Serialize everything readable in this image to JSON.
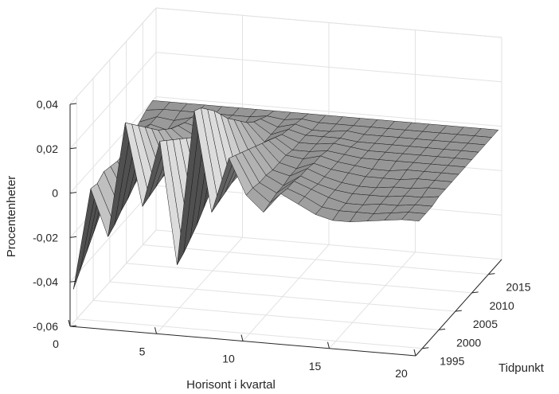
{
  "chart_data": {
    "type": "surface",
    "title": "",
    "xlabel": "Horisont i kvartal",
    "ylabel": "Tidpunkt",
    "zlabel": "Procentenheter",
    "x_ticks": [
      "0",
      "5",
      "10",
      "15",
      "20"
    ],
    "y_ticks": [
      "1995",
      "2000",
      "2005",
      "2010",
      "2015"
    ],
    "z_ticks": [
      "-0,06",
      "-0,04",
      "-0,02",
      "0",
      "0,02",
      "0,04"
    ],
    "xlim": [
      0,
      20
    ],
    "ylim": [
      1993,
      2019
    ],
    "zlim": [
      -0.06,
      0.04
    ],
    "grid": true,
    "colormap": "gray",
    "edge_color": "#000000",
    "horizon": [
      0,
      1,
      2,
      3,
      4,
      5,
      6,
      7,
      8,
      9,
      10,
      11,
      12,
      13,
      14,
      15,
      16,
      17,
      18,
      19,
      20
    ],
    "time": [
      1994,
      1996,
      1998,
      2000,
      2002,
      2004,
      2006,
      2008,
      2010,
      2012,
      2014,
      2016,
      2018
    ],
    "z": [
      [
        -0.045,
        0.001,
        -0.02,
        0.032,
        -0.005,
        0.025,
        -0.03,
        0.04,
        -0.005,
        0.02,
        0.004,
        -0.003,
        0.006,
        0.002,
        -0.002,
        -0.004,
        -0.004,
        -0.003,
        -0.002,
        -0.001,
        -0.001
      ],
      [
        -0.04,
        0.0,
        -0.018,
        0.028,
        -0.004,
        0.022,
        -0.028,
        0.038,
        -0.004,
        0.018,
        0.004,
        -0.002,
        0.005,
        0.002,
        -0.002,
        -0.003,
        -0.003,
        -0.003,
        -0.002,
        -0.001,
        -0.001
      ],
      [
        -0.035,
        0.002,
        -0.015,
        0.024,
        -0.003,
        0.019,
        -0.025,
        0.034,
        -0.003,
        0.016,
        0.003,
        -0.001,
        0.005,
        0.002,
        -0.001,
        -0.003,
        -0.003,
        -0.002,
        -0.002,
        -0.001,
        -0.001
      ],
      [
        -0.03,
        0.001,
        -0.013,
        0.02,
        -0.002,
        0.016,
        -0.022,
        0.03,
        -0.002,
        0.014,
        0.003,
        -0.001,
        0.004,
        0.001,
        -0.001,
        -0.002,
        -0.002,
        -0.002,
        -0.001,
        -0.001,
        0.0
      ],
      [
        -0.025,
        0.0,
        -0.01,
        0.016,
        -0.002,
        0.013,
        -0.018,
        0.025,
        -0.002,
        0.012,
        0.002,
        0.0,
        0.004,
        0.001,
        -0.001,
        -0.002,
        -0.002,
        -0.001,
        -0.001,
        0.0,
        0.0
      ],
      [
        -0.02,
        0.0,
        -0.008,
        0.012,
        -0.001,
        0.01,
        -0.014,
        0.02,
        -0.001,
        0.01,
        0.002,
        0.0,
        0.003,
        0.001,
        0.0,
        -0.001,
        -0.001,
        -0.001,
        0.0,
        0.0,
        0.0
      ],
      [
        -0.016,
        0.0,
        -0.006,
        0.009,
        -0.001,
        0.008,
        -0.01,
        0.016,
        0.0,
        0.008,
        0.002,
        0.001,
        0.003,
        0.001,
        0.0,
        -0.001,
        -0.001,
        0.0,
        0.0,
        0.0,
        0.0
      ],
      [
        -0.012,
        0.0,
        -0.004,
        0.006,
        0.0,
        0.006,
        -0.007,
        0.012,
        0.0,
        0.006,
        0.001,
        0.001,
        0.002,
        0.001,
        0.0,
        0.0,
        0.0,
        0.0,
        0.0,
        0.0,
        0.0
      ],
      [
        -0.008,
        0.0,
        -0.003,
        0.004,
        0.0,
        0.004,
        -0.004,
        0.008,
        0.0,
        0.004,
        0.001,
        0.001,
        0.002,
        0.001,
        0.0,
        0.0,
        0.0,
        0.0,
        0.0,
        0.0,
        0.0
      ],
      [
        -0.005,
        0.0,
        -0.002,
        0.002,
        0.0,
        0.002,
        -0.002,
        0.005,
        0.0,
        0.003,
        0.001,
        0.001,
        0.001,
        0.0,
        0.0,
        0.0,
        0.0,
        0.0,
        0.0,
        0.0,
        0.0
      ],
      [
        -0.003,
        0.0,
        -0.001,
        0.001,
        0.0,
        0.001,
        -0.001,
        0.003,
        0.0,
        0.002,
        0.0,
        0.0,
        0.001,
        0.0,
        0.0,
        0.0,
        0.0,
        0.0,
        0.0,
        0.0,
        0.0
      ],
      [
        -0.001,
        0.0,
        0.0,
        0.0,
        0.0,
        0.0,
        0.0,
        0.001,
        0.0,
        0.001,
        0.0,
        0.0,
        0.0,
        0.0,
        0.0,
        0.0,
        0.0,
        0.0,
        0.0,
        0.0,
        0.0
      ],
      [
        0.0,
        0.0,
        0.0,
        0.0,
        0.0,
        0.0,
        0.0,
        0.0,
        0.0,
        0.0,
        0.0,
        0.0,
        0.0,
        0.0,
        0.0,
        0.0,
        0.0,
        0.0,
        0.0,
        0.0,
        0.0
      ]
    ]
  }
}
